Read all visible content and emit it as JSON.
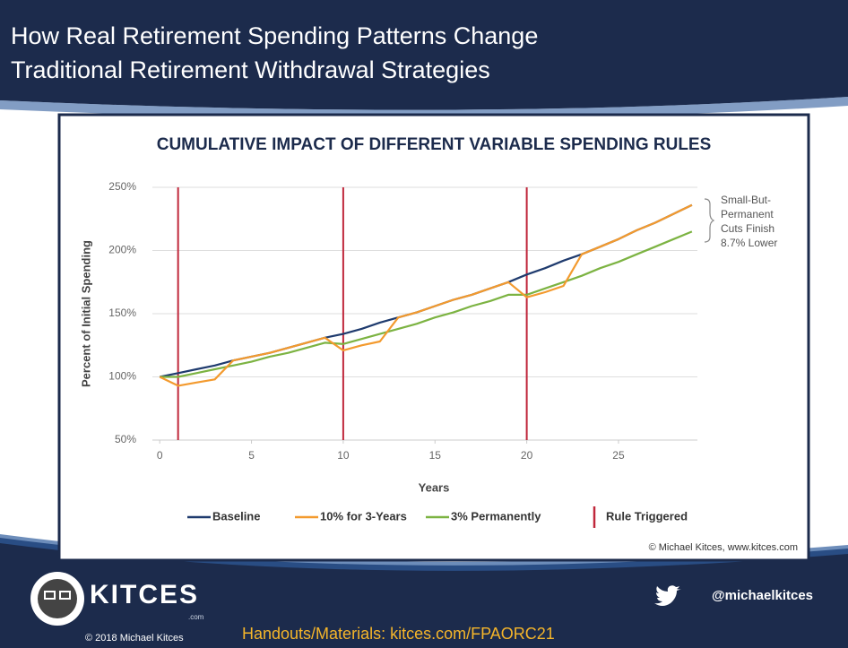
{
  "slide": {
    "title": [
      "How Real Retirement Spending Patterns Change",
      "Traditional Retirement Withdrawal Strategies"
    ],
    "logo": "KITCES",
    "logo_suffix": ".com",
    "copyright": "© 2018 Michael Kitces",
    "handouts": "Handouts/Materials: kitces.com/FPAORC21",
    "twitter": "@michaelkitces"
  },
  "chart_data": {
    "type": "line",
    "title": "CUMULATIVE IMPACT OF DIFFERENT VARIABLE SPENDING RULES",
    "x_label": "Years",
    "y_label": "Percent of Initial Spending",
    "credit": "© Michael Kitces, www.kitces.com",
    "x": [
      0,
      1,
      2,
      3,
      4,
      5,
      6,
      7,
      8,
      9,
      10,
      11,
      12,
      13,
      14,
      15,
      16,
      17,
      18,
      19,
      20,
      21,
      22,
      23,
      24,
      25,
      26,
      27,
      28,
      29
    ],
    "series": [
      {
        "name": "Baseline",
        "color": "#1f3b6e",
        "values": [
          100,
          103,
          106,
          109,
          113,
          116,
          119,
          123,
          127,
          131,
          134,
          138,
          143,
          147,
          151,
          156,
          161,
          165,
          170,
          175,
          181,
          186,
          192,
          197,
          203,
          209,
          216,
          222,
          229,
          236
        ]
      },
      {
        "name": "10% for 3-Years",
        "color": "#f39a2e",
        "values": [
          100,
          93,
          95.5,
          98,
          113,
          116,
          119,
          123,
          127,
          131,
          121,
          125,
          128,
          147,
          151,
          156,
          161,
          165,
          170,
          175,
          163,
          167,
          172,
          197,
          203,
          209,
          216,
          222,
          229,
          236
        ]
      },
      {
        "name": "3% Permanently",
        "color": "#7cb342",
        "values": [
          100,
          100,
          103,
          106,
          109,
          112,
          116,
          119,
          123,
          127,
          126,
          130,
          134,
          138,
          142,
          147,
          151,
          156,
          160,
          165,
          165,
          170,
          175,
          180,
          186,
          191,
          197,
          203,
          209,
          215
        ]
      }
    ],
    "triggers": {
      "name": "Rule Triggered",
      "color": "#c0283c",
      "x": [
        1,
        10,
        20
      ]
    },
    "annotation": [
      "Small-But-",
      "Permanent",
      "Cuts Finish",
      "8.7% Lower"
    ],
    "xlim": [
      -0.4,
      29.3
    ],
    "ylim": [
      50,
      250
    ],
    "xticks": [
      0,
      5,
      10,
      15,
      20,
      25
    ],
    "yticks": [
      {
        "value": 50,
        "label": "50%"
      },
      {
        "value": 100,
        "label": "100%"
      },
      {
        "value": 150,
        "label": "150%"
      },
      {
        "value": 200,
        "label": "200%"
      },
      {
        "value": 250,
        "label": "250%"
      }
    ],
    "grid": true
  }
}
